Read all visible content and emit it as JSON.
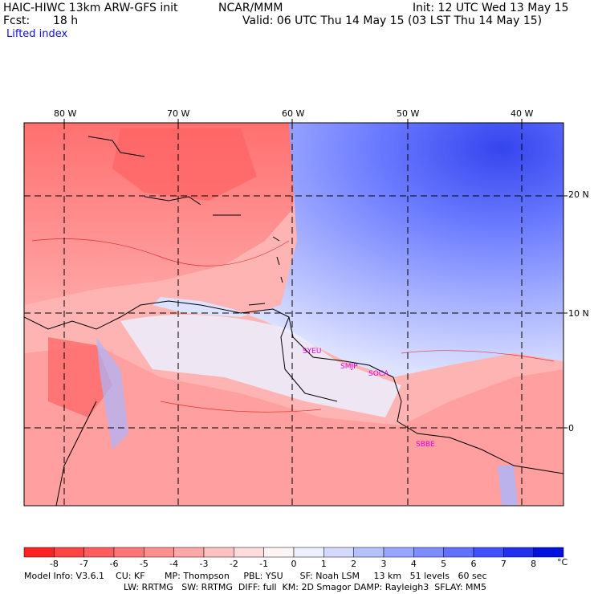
{
  "header": {
    "model_line": "HAIC-HIWC 13km ARW-GFS init",
    "org": "NCAR/MMM",
    "init": "Init: 12 UTC Wed 13 May 15",
    "fcst_label": "Fcst:",
    "fcst_value": "18 h",
    "valid": "Valid: 06 UTC Thu 14 May 15 (03 LST Thu 14 May 15)",
    "field": "Lifted index"
  },
  "axes": {
    "lon_labels": [
      "80 W",
      "70 W",
      "60 W",
      "50 W",
      "40 W"
    ],
    "lat_labels": [
      "20 N",
      "10 N",
      "0"
    ]
  },
  "stations": [
    "SYEU",
    "SMJP",
    "SOCA",
    "SBBE"
  ],
  "colorbar": {
    "levels": [
      "-8",
      "-7",
      "-6",
      "-5",
      "-4",
      "-3",
      "-2",
      "-1",
      "0",
      "1",
      "2",
      "3",
      "4",
      "5",
      "6",
      "7",
      "8"
    ],
    "unit": "°C",
    "colors": [
      "#ff2222",
      "#ff4444",
      "#ff5e5e",
      "#ff7474",
      "#ff8e8e",
      "#ffa8a8",
      "#ffc2c2",
      "#ffdcdc",
      "#fff4f4",
      "#eef0ff",
      "#d4daff",
      "#b6c0ff",
      "#98a6ff",
      "#7c8cff",
      "#6070ff",
      "#4050ff",
      "#2030ee",
      "#0010dd"
    ]
  },
  "footer": {
    "line1": "Model Info: V3.6.1    CU: KF       MP: Thompson     PBL: YSU      SF: Noah LSM     13 km   51 levels   60 sec",
    "line2": "LW: RRTMG   SW: RRTMG  DIFF: full  KM: 2D Smagor DAMP: Rayleigh3  SFLAY: MM5"
  }
}
